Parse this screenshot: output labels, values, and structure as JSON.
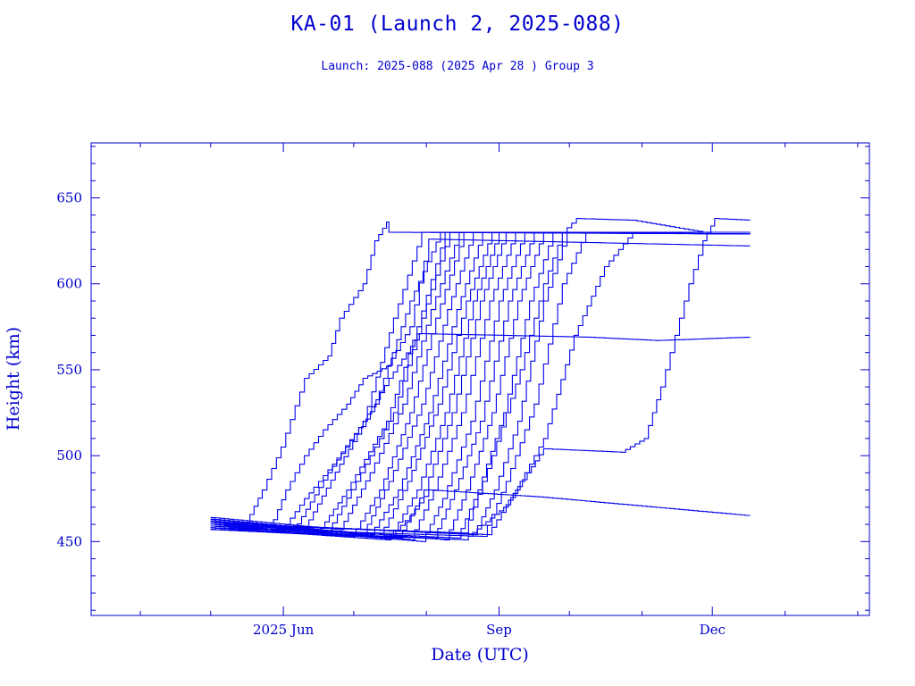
{
  "chart_data": {
    "type": "line",
    "title": "KA-01 (Launch 2, 2025-088)",
    "subtitle": "Launch: 2025-088  (2025 Apr 28 )  Group 3",
    "xlabel": "Date (UTC)",
    "ylabel": "Height (km)",
    "x_units": "day of year 2025",
    "xlim": [
      69,
      401
    ],
    "ylim": [
      407,
      682
    ],
    "x_major_ticks": [
      {
        "value": 151,
        "label": "2025 Jun"
      },
      {
        "value": 243,
        "label": "Sep"
      },
      {
        "value": 334,
        "label": "Dec"
      }
    ],
    "x_minor_ticks": [
      90,
      120,
      181,
      212,
      273,
      304,
      365,
      396
    ],
    "y_major_ticks": [
      {
        "value": 450,
        "label": "450"
      },
      {
        "value": 500,
        "label": "500"
      },
      {
        "value": 550,
        "label": "550"
      },
      {
        "value": 600,
        "label": "600"
      },
      {
        "value": 650,
        "label": "650"
      }
    ],
    "y_minor_step": 10,
    "grid": false,
    "color": "#0000ee",
    "series": [
      {
        "name": "s1",
        "points": [
          [
            120,
            463
          ],
          [
            135,
            461
          ],
          [
            142,
            480
          ],
          [
            150,
            505
          ],
          [
            160,
            545
          ],
          [
            170,
            558
          ],
          [
            175,
            580
          ],
          [
            185,
            600
          ],
          [
            190,
            625
          ],
          [
            195,
            636
          ],
          [
            196,
            630
          ],
          [
            350,
            629
          ]
        ]
      },
      {
        "name": "s2",
        "points": [
          [
            120,
            460
          ],
          [
            145,
            457
          ],
          [
            152,
            480
          ],
          [
            160,
            500
          ],
          [
            168,
            515
          ],
          [
            178,
            530
          ],
          [
            185,
            545
          ],
          [
            195,
            552
          ],
          [
            205,
            575
          ],
          [
            213,
            626
          ],
          [
            350,
            622
          ]
        ]
      },
      {
        "name": "s3",
        "points": [
          [
            120,
            462
          ],
          [
            150,
            456
          ],
          [
            160,
            475
          ],
          [
            172,
            495
          ],
          [
            185,
            520
          ],
          [
            196,
            545
          ],
          [
            209,
            571
          ],
          [
            280,
            569
          ],
          [
            310,
            567
          ],
          [
            350,
            569
          ]
        ]
      },
      {
        "name": "s4",
        "points": [
          [
            120,
            458
          ],
          [
            195,
            451
          ],
          [
            205,
            465
          ],
          [
            213,
            480
          ],
          [
            260,
            476
          ],
          [
            350,
            465
          ]
        ]
      },
      {
        "name": "s5",
        "points": [
          [
            120,
            457
          ],
          [
            228,
            451
          ],
          [
            245,
            470
          ],
          [
            255,
            490
          ],
          [
            262,
            504
          ],
          [
            295,
            502
          ],
          [
            305,
            510
          ],
          [
            312,
            540
          ],
          [
            318,
            570
          ],
          [
            324,
            600
          ],
          [
            330,
            625
          ],
          [
            335,
            638
          ],
          [
            350,
            637
          ]
        ]
      },
      {
        "name": "s6",
        "points": [
          [
            120,
            461
          ],
          [
            238,
            454
          ],
          [
            250,
            480
          ],
          [
            262,
            510
          ],
          [
            275,
            570
          ],
          [
            288,
            610
          ],
          [
            300,
            630
          ],
          [
            350,
            630
          ]
        ]
      },
      {
        "name": "s7",
        "points": [
          [
            120,
            460
          ],
          [
            228,
            455
          ],
          [
            240,
            500
          ],
          [
            252,
            550
          ],
          [
            262,
            600
          ],
          [
            270,
            630
          ],
          [
            276,
            638
          ],
          [
            300,
            637
          ],
          [
            330,
            630
          ],
          [
            350,
            630
          ]
        ]
      },
      {
        "name": "s8",
        "points": [
          [
            120,
            459
          ],
          [
            155,
            456
          ],
          [
            170,
            490
          ],
          [
            185,
            520
          ],
          [
            198,
            580
          ],
          [
            210,
            630
          ],
          [
            350,
            630
          ]
        ]
      },
      {
        "name": "s9",
        "points": [
          [
            120,
            463
          ],
          [
            160,
            458
          ],
          [
            175,
            495
          ],
          [
            190,
            530
          ],
          [
            205,
            590
          ],
          [
            218,
            630
          ],
          [
            350,
            630
          ]
        ]
      },
      {
        "name": "s10",
        "points": [
          [
            120,
            458
          ],
          [
            165,
            454
          ],
          [
            178,
            480
          ],
          [
            195,
            520
          ],
          [
            208,
            575
          ],
          [
            220,
            630
          ],
          [
            350,
            629
          ]
        ]
      },
      {
        "name": "s11",
        "points": [
          [
            120,
            461
          ],
          [
            170,
            456
          ],
          [
            182,
            485
          ],
          [
            198,
            525
          ],
          [
            210,
            580
          ],
          [
            222,
            630
          ],
          [
            350,
            630
          ]
        ]
      },
      {
        "name": "s12",
        "points": [
          [
            120,
            464
          ],
          [
            175,
            457
          ],
          [
            188,
            490
          ],
          [
            202,
            530
          ],
          [
            214,
            585
          ],
          [
            226,
            630
          ],
          [
            350,
            630
          ]
        ]
      },
      {
        "name": "s13",
        "points": [
          [
            120,
            457
          ],
          [
            180,
            453
          ],
          [
            192,
            480
          ],
          [
            205,
            525
          ],
          [
            216,
            580
          ],
          [
            228,
            630
          ],
          [
            350,
            629
          ]
        ]
      },
      {
        "name": "s14",
        "points": [
          [
            120,
            460
          ],
          [
            185,
            455
          ],
          [
            196,
            485
          ],
          [
            210,
            530
          ],
          [
            221,
            585
          ],
          [
            232,
            630
          ],
          [
            350,
            630
          ]
        ]
      },
      {
        "name": "s15",
        "points": [
          [
            120,
            462
          ],
          [
            188,
            454
          ],
          [
            200,
            480
          ],
          [
            213,
            525
          ],
          [
            225,
            585
          ],
          [
            236,
            630
          ],
          [
            350,
            630
          ]
        ]
      },
      {
        "name": "s16",
        "points": [
          [
            120,
            459
          ],
          [
            192,
            453
          ],
          [
            204,
            485
          ],
          [
            217,
            530
          ],
          [
            229,
            590
          ],
          [
            240,
            630
          ],
          [
            350,
            629
          ]
        ]
      },
      {
        "name": "s17",
        "points": [
          [
            120,
            461
          ],
          [
            196,
            452
          ],
          [
            208,
            480
          ],
          [
            220,
            525
          ],
          [
            232,
            590
          ],
          [
            243,
            630
          ],
          [
            350,
            630
          ]
        ]
      },
      {
        "name": "s18",
        "points": [
          [
            120,
            458
          ],
          [
            200,
            452
          ],
          [
            211,
            480
          ],
          [
            223,
            525
          ],
          [
            235,
            590
          ],
          [
            246,
            630
          ],
          [
            350,
            630
          ]
        ]
      },
      {
        "name": "s19",
        "points": [
          [
            120,
            463
          ],
          [
            205,
            451
          ],
          [
            215,
            480
          ],
          [
            227,
            525
          ],
          [
            239,
            590
          ],
          [
            250,
            630
          ],
          [
            350,
            630
          ]
        ]
      },
      {
        "name": "s20",
        "points": [
          [
            120,
            460
          ],
          [
            210,
            450
          ],
          [
            219,
            475
          ],
          [
            231,
            520
          ],
          [
            243,
            590
          ],
          [
            254,
            630
          ],
          [
            350,
            630
          ]
        ]
      },
      {
        "name": "s21",
        "points": [
          [
            120,
            457
          ],
          [
            215,
            452
          ],
          [
            224,
            480
          ],
          [
            235,
            520
          ],
          [
            247,
            590
          ],
          [
            258,
            630
          ],
          [
            350,
            629
          ]
        ]
      },
      {
        "name": "s22",
        "points": [
          [
            120,
            462
          ],
          [
            220,
            451
          ],
          [
            229,
            480
          ],
          [
            240,
            525
          ],
          [
            251,
            590
          ],
          [
            262,
            630
          ],
          [
            350,
            630
          ]
        ]
      },
      {
        "name": "s23",
        "points": [
          [
            120,
            459
          ],
          [
            225,
            452
          ],
          [
            234,
            480
          ],
          [
            245,
            525
          ],
          [
            256,
            590
          ],
          [
            266,
            630
          ],
          [
            350,
            630
          ]
        ]
      },
      {
        "name": "s24",
        "points": [
          [
            120,
            461
          ],
          [
            232,
            454
          ],
          [
            241,
            480
          ],
          [
            251,
            520
          ],
          [
            262,
            590
          ],
          [
            272,
            630
          ],
          [
            350,
            630
          ]
        ]
      },
      {
        "name": "s25",
        "points": [
          [
            120,
            458
          ],
          [
            236,
            453
          ],
          [
            246,
            485
          ],
          [
            258,
            530
          ],
          [
            270,
            600
          ],
          [
            280,
            630
          ],
          [
            350,
            629
          ]
        ]
      }
    ]
  }
}
